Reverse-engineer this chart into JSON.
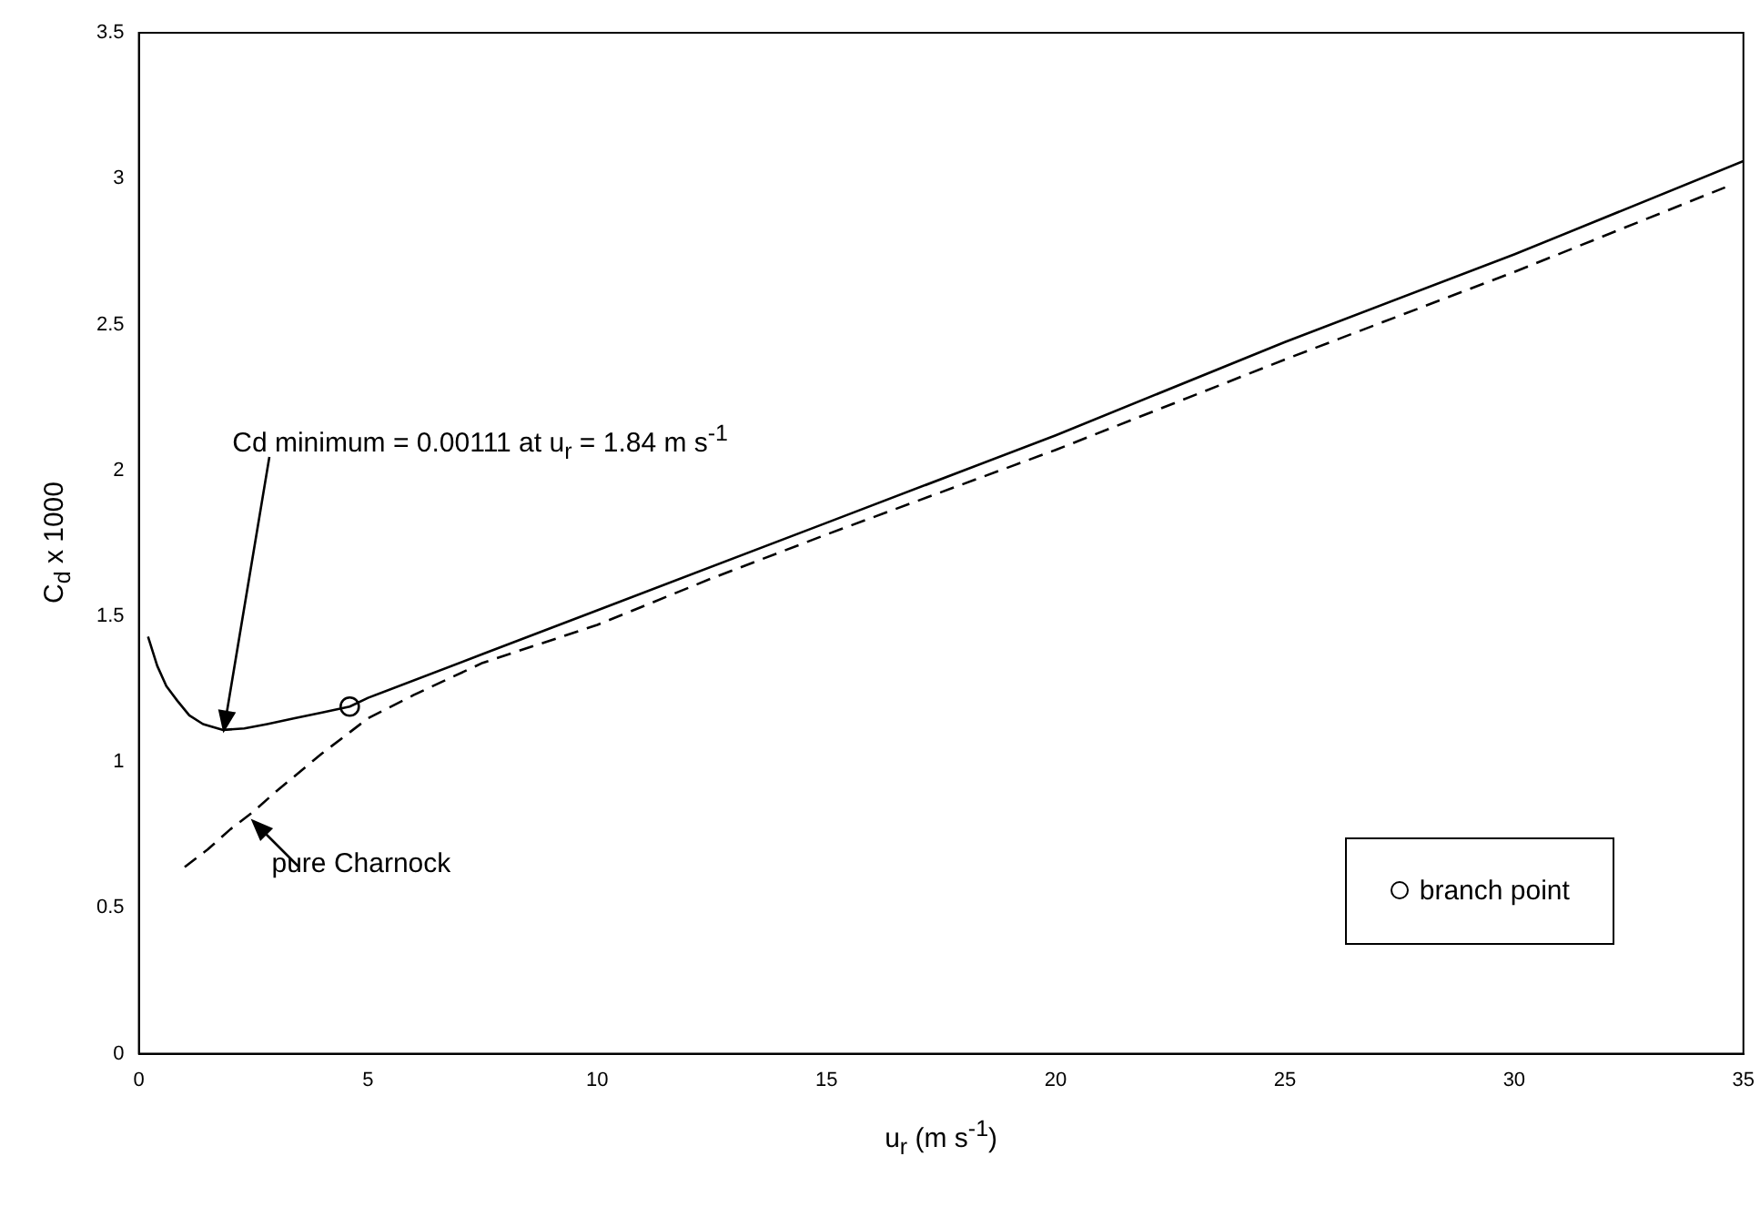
{
  "chart_data": {
    "type": "line",
    "xlabel": "u$_{r}$ (m s$^{-1}$)",
    "ylabel": "C$_{d}$ x 1000",
    "xlim": [
      0,
      35
    ],
    "xticks": [
      0,
      5,
      10,
      15,
      20,
      25,
      30,
      35
    ],
    "ylim": [
      0,
      3.5
    ],
    "yticks": [
      0,
      0.5,
      1,
      1.5,
      2,
      2.5,
      3,
      3.5
    ],
    "grid": false,
    "legend": "bottom right",
    "series": [
      {
        "color": "#000000",
        "line_style": "solid",
        "marker": "none",
        "x": [
          0.2,
          0.4,
          0.6,
          0.84,
          1.1,
          1.4,
          1.84,
          2.3,
          2.8,
          3.4,
          4.0,
          4.6,
          5,
          7.5,
          10,
          15,
          20,
          25,
          30,
          35
        ],
        "values": [
          1.43,
          1.33,
          1.26,
          1.21,
          1.16,
          1.13,
          1.11,
          1.115,
          1.13,
          1.15,
          1.17,
          1.19,
          1.22,
          1.37,
          1.52,
          1.82,
          2.12,
          2.44,
          2.74,
          3.06
        ]
      },
      {
        "color": "#000000",
        "line_style": "dashed",
        "marker": "none",
        "x": [
          1,
          1.5,
          2,
          2.5,
          3,
          4,
          5,
          6,
          7.5,
          10,
          12.5,
          15,
          20,
          25,
          30,
          34.6
        ],
        "values": [
          0.64,
          0.7,
          0.77,
          0.83,
          0.9,
          1.03,
          1.15,
          1.23,
          1.34,
          1.47,
          1.63,
          1.78,
          2.07,
          2.38,
          2.68,
          2.97
        ]
      },
      {
        "type": "scatter",
        "name": "branch point",
        "color": "#000000",
        "marker": "circle",
        "x": [
          4.6
        ],
        "values": [
          1.19
        ]
      }
    ],
    "annotations": [
      {
        "text": "Cd minimum = 0.00111 at u$_{r}$ = 1.84 m s$^{-1}$",
        "x": 1.84,
        "y": 1.11
      },
      {
        "text": "pure Charnock",
        "x": 2.5,
        "y": 0.8
      }
    ]
  }
}
